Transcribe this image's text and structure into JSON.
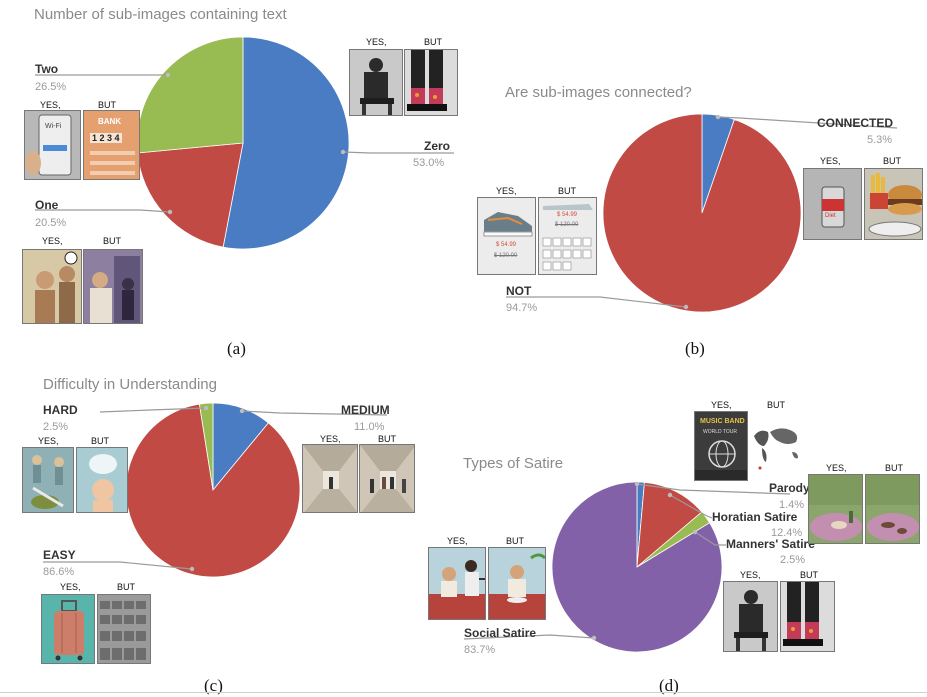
{
  "panel_captions": [
    "(a)",
    "(b)",
    "(c)",
    "(d)"
  ],
  "comic_tags": {
    "yes": "YES,",
    "but": "BUT"
  },
  "colors": {
    "blue": "#4a7cc4",
    "red": "#c24a45",
    "green": "#98bb52",
    "purple": "#8361a9"
  },
  "chart_data": [
    {
      "type": "pie",
      "title": "Number of sub-images containing text",
      "slices": [
        {
          "label": "Zero",
          "value": 53.0,
          "pct_text": "53.0%",
          "color": "#4a7cc4"
        },
        {
          "label": "One",
          "value": 20.5,
          "pct_text": "20.5%",
          "color": "#c24a45"
        },
        {
          "label": "Two",
          "value": 26.5,
          "pct_text": "26.5%",
          "color": "#98bb52"
        }
      ]
    },
    {
      "type": "pie",
      "title": "Are sub-images connected?",
      "slices": [
        {
          "label": "CONNECTED",
          "value": 5.3,
          "pct_text": "5.3%",
          "color": "#4a7cc4"
        },
        {
          "label": "NOT",
          "value": 94.7,
          "pct_text": "94.7%",
          "color": "#c24a45"
        }
      ]
    },
    {
      "type": "pie",
      "title": "Difficulty in Understanding",
      "slices": [
        {
          "label": "MEDIUM",
          "value": 11.0,
          "pct_text": "11.0%",
          "color": "#4a7cc4"
        },
        {
          "label": "EASY",
          "value": 86.6,
          "pct_text": "86.6%",
          "color": "#c24a45"
        },
        {
          "label": "HARD",
          "value": 2.5,
          "pct_text": "2.5%",
          "color": "#98bb52"
        }
      ]
    },
    {
      "type": "pie",
      "title": "Types of Satire",
      "slices": [
        {
          "label": "Parody",
          "value": 1.4,
          "pct_text": "1.4%",
          "color": "#4a7cc4"
        },
        {
          "label": "Horatian Satire",
          "value": 12.4,
          "pct_text": "12.4%",
          "color": "#c24a45"
        },
        {
          "label": "Manners' Satire",
          "value": 2.5,
          "pct_text": "2.5%",
          "color": "#98bb52"
        },
        {
          "label": "Social Satire",
          "value": 83.7,
          "pct_text": "83.7%",
          "color": "#8361a9"
        }
      ]
    }
  ],
  "thumbnail_text": {
    "wifi": "Wi-Fi",
    "bank": "BANK",
    "digits": "1 2 3 4",
    "price_new": "$ 54.99",
    "price_old": "$ 120.00",
    "can": "Diet",
    "band": "MUSIC BAND",
    "tour": "WORLD TOUR"
  }
}
